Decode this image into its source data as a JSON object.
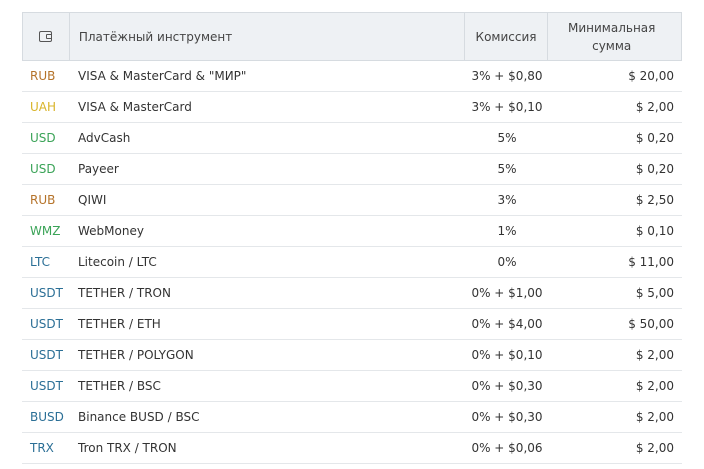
{
  "header": {
    "instrument": "Платёжный инструмент",
    "commission": "Комиссия",
    "min_line1": "Минимальная",
    "min_line2": "сумма"
  },
  "colors": {
    "RUB": "#b5732a",
    "UAH": "#d9b429",
    "USD": "#3aa357",
    "WMZ": "#3aa357",
    "LTC": "#2b6f96",
    "USDT": "#2b6f96",
    "BUSD": "#2b6f96",
    "TRX": "#2b6f96"
  },
  "rows": [
    {
      "currency": "RUB",
      "instrument": "VISA & MasterCard & \"МИР\"",
      "commission": "3% + $0,80",
      "min": "$ 20,00"
    },
    {
      "currency": "UAH",
      "instrument": "VISA & MasterCard",
      "commission": "3% + $0,10",
      "min": "$ 2,00"
    },
    {
      "currency": "USD",
      "instrument": "AdvCash",
      "commission": "5%",
      "min": "$ 0,20"
    },
    {
      "currency": "USD",
      "instrument": "Payeer",
      "commission": "5%",
      "min": "$ 0,20"
    },
    {
      "currency": "RUB",
      "instrument": "QIWI",
      "commission": "3%",
      "min": "$ 2,50"
    },
    {
      "currency": "WMZ",
      "instrument": "WebMoney",
      "commission": "1%",
      "min": "$ 0,10"
    },
    {
      "currency": "LTC",
      "instrument": "Litecoin / LTC",
      "commission": "0%",
      "min": "$ 11,00"
    },
    {
      "currency": "USDT",
      "instrument": "TETHER / TRON",
      "commission": "0% + $1,00",
      "min": "$ 5,00"
    },
    {
      "currency": "USDT",
      "instrument": "TETHER / ETH",
      "commission": "0% + $4,00",
      "min": "$ 50,00"
    },
    {
      "currency": "USDT",
      "instrument": "TETHER / POLYGON",
      "commission": "0% + $0,10",
      "min": "$ 2,00"
    },
    {
      "currency": "USDT",
      "instrument": "TETHER / BSC",
      "commission": "0% + $0,30",
      "min": "$ 2,00"
    },
    {
      "currency": "BUSD",
      "instrument": "Binance BUSD / BSC",
      "commission": "0% + $0,30",
      "min": "$ 2,00"
    },
    {
      "currency": "TRX",
      "instrument": "Tron TRX / TRON",
      "commission": "0% + $0,06",
      "min": "$ 2,00"
    }
  ]
}
